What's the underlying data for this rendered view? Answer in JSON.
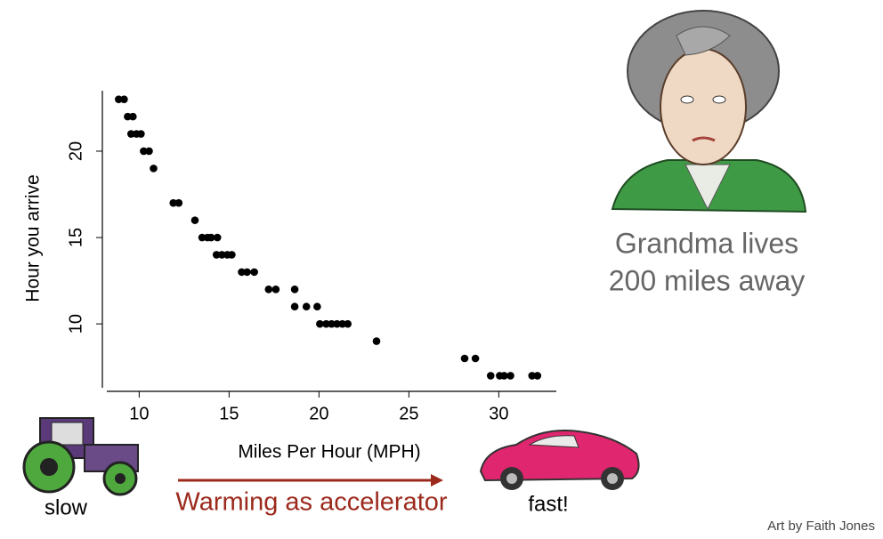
{
  "chart_data": {
    "type": "scatter",
    "xlabel": "Miles Per Hour (MPH)",
    "ylabel": "Hour you arrive",
    "x": [
      8.86,
      9.16,
      9.36,
      9.65,
      9.55,
      9.85,
      10.1,
      10.25,
      10.55,
      10.8,
      11.9,
      12.2,
      13.1,
      13.5,
      13.8,
      14.0,
      14.35,
      14.3,
      14.6,
      14.9,
      15.15,
      15.7,
      16.0,
      16.4,
      17.2,
      17.6,
      18.65,
      18.65,
      19.3,
      19.9,
      20.05,
      20.4,
      20.7,
      21.0,
      21.3,
      21.6,
      23.2,
      28.1,
      28.7,
      29.55,
      30.05,
      30.3,
      30.65,
      31.85,
      32.15
    ],
    "values": [
      23,
      23,
      22,
      22,
      21,
      21,
      21,
      20,
      20,
      19,
      17,
      17,
      16,
      15,
      15,
      15,
      15,
      14,
      14,
      14,
      14,
      13,
      13,
      13,
      12,
      12,
      12,
      11,
      11,
      11,
      10,
      10,
      10,
      10,
      10,
      10,
      9,
      8,
      8,
      7,
      7,
      7,
      7,
      7,
      7
    ],
    "color": "#000000",
    "xlim": [
      8.2,
      33.2
    ],
    "ylim": [
      6.3,
      23.5
    ],
    "xticks": [
      10,
      15,
      20,
      25,
      30
    ],
    "yticks": [
      10,
      15,
      20
    ]
  },
  "annotations": {
    "grandma": [
      "Grandma lives",
      "200 miles away"
    ],
    "slow": "slow",
    "accelerator": "Warming as accelerator",
    "fast": "fast!",
    "credit": "Art by Faith Jones"
  }
}
